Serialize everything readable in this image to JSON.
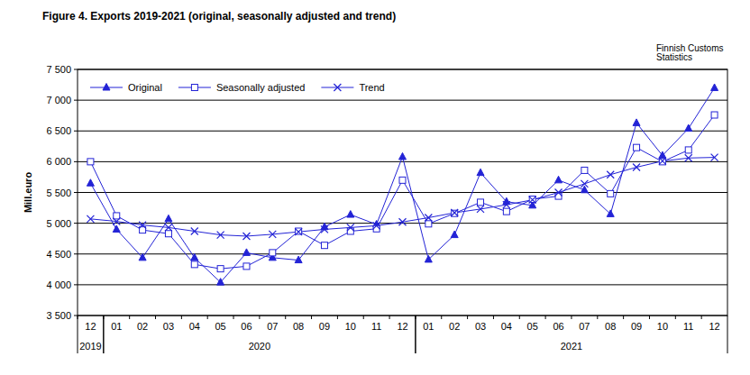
{
  "chart_data": {
    "type": "line",
    "title": "Figure 4. Exports 2019-2021 (original, seasonally adjusted and trend)",
    "source": [
      "Finnish Customs",
      "Statistics"
    ],
    "y_label": "Mill.euro",
    "categories": [
      "12",
      "01",
      "02",
      "03",
      "04",
      "05",
      "06",
      "07",
      "08",
      "09",
      "10",
      "11",
      "12",
      "01",
      "02",
      "03",
      "04",
      "05",
      "06",
      "07",
      "08",
      "09",
      "10",
      "11",
      "12"
    ],
    "x_groups": [
      {
        "label": "2019",
        "start": 0,
        "end": 0
      },
      {
        "label": "2020",
        "start": 1,
        "end": 12
      },
      {
        "label": "2021",
        "start": 13,
        "end": 24
      }
    ],
    "series": [
      {
        "name": "Original",
        "color": "#2323d6",
        "marker": "triangle",
        "line_style": "solid",
        "values": [
          5650,
          4900,
          4440,
          5070,
          4440,
          4040,
          4520,
          4440,
          4400,
          4940,
          5140,
          4980,
          6080,
          4410,
          4810,
          5820,
          5350,
          5290,
          5700,
          5540,
          5150,
          6630,
          6100,
          6540,
          7200
        ]
      },
      {
        "name": "Seasonally adjusted",
        "color": "#2323d6",
        "marker": "square",
        "line_style": "solid",
        "values": [
          6000,
          5120,
          4890,
          4830,
          4330,
          4260,
          4300,
          4520,
          4870,
          4640,
          4870,
          4910,
          5700,
          4990,
          5160,
          5340,
          5190,
          5390,
          5440,
          5860,
          5480,
          6230,
          6000,
          6190,
          6760
        ]
      },
      {
        "name": "Trend",
        "color": "#2323d6",
        "marker": "x",
        "line_style": "solid",
        "values": [
          5070,
          5030,
          4970,
          4930,
          4870,
          4810,
          4790,
          4820,
          4860,
          4900,
          4930,
          4960,
          5020,
          5090,
          5170,
          5230,
          5300,
          5380,
          5500,
          5640,
          5790,
          5910,
          6010,
          6060,
          6070
        ]
      }
    ],
    "ylim": [
      3500,
      7500
    ],
    "yticks": [
      {
        "value": 3500,
        "label": "3 500"
      },
      {
        "value": 4000,
        "label": "4 000"
      },
      {
        "value": 4500,
        "label": "4 500"
      },
      {
        "value": 5000,
        "label": "5 000"
      },
      {
        "value": 5500,
        "label": "5 500"
      },
      {
        "value": 6000,
        "label": "6 000"
      },
      {
        "value": 6500,
        "label": "6 500"
      },
      {
        "value": 7000,
        "label": "7 000"
      },
      {
        "value": 7500,
        "label": "7 500"
      }
    ],
    "grid": true,
    "legend": "upper left"
  }
}
